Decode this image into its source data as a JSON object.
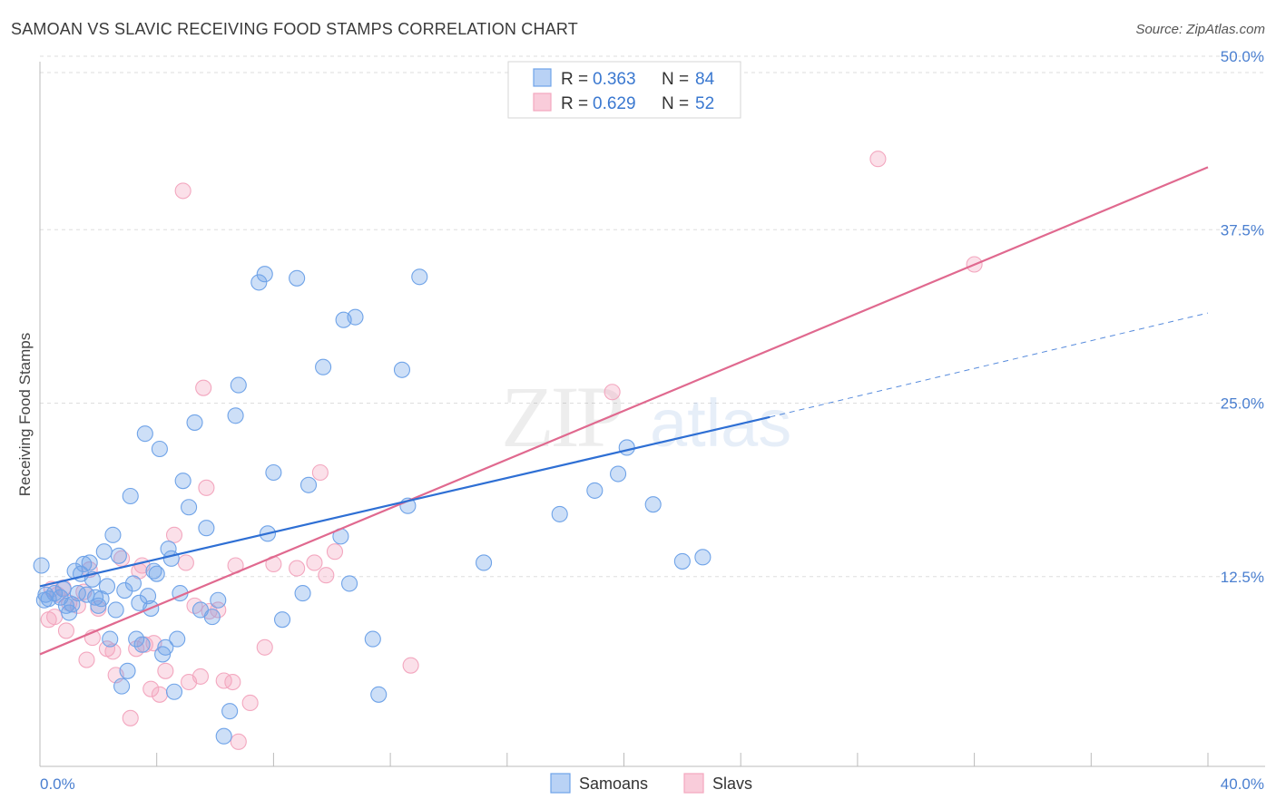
{
  "title": "SAMOAN VS SLAVIC RECEIVING FOOD STAMPS CORRELATION CHART",
  "source": "Source: ZipAtlas.com",
  "colors": {
    "blue": "#6fa3e8",
    "blue_line": "#2e6fd4",
    "pink": "#f3a7bf",
    "pink_line": "#e0698f",
    "grid": "#dddddd",
    "label": "#4a7fd0"
  },
  "chart_data": {
    "type": "scatter",
    "title": "SAMOAN VS SLAVIC RECEIVING FOOD STAMPS CORRELATION CHART",
    "xlabel": "",
    "ylabel": "Receiving Food Stamps",
    "xlim": [
      0,
      40
    ],
    "ylim": [
      0,
      50
    ],
    "x_tick_labels": [
      "0.0%",
      "40.0%"
    ],
    "y_ticks": [
      12.5,
      25.0,
      37.5,
      50.0
    ],
    "y_tick_labels": [
      "12.5%",
      "25.0%",
      "37.5%",
      "50.0%"
    ],
    "grid": true,
    "legend": [
      {
        "name": "Samoans",
        "r_label": "R =",
        "r": "0.363",
        "n_label": "N =",
        "n": "84"
      },
      {
        "name": "Slavs",
        "r_label": "R =",
        "r": "0.629",
        "n_label": "N =",
        "n": "52"
      }
    ],
    "series": [
      {
        "name": "Samoans",
        "trend": {
          "x0": 0,
          "y0": 11.8,
          "x1": 25,
          "y1": 24.0,
          "dash_x1": 40,
          "dash_y1": 31.5
        },
        "points": [
          [
            0.2,
            11.2
          ],
          [
            0.3,
            10.9
          ],
          [
            0.5,
            11.3
          ],
          [
            0.7,
            11.0
          ],
          [
            0.8,
            11.6
          ],
          [
            0.9,
            10.4
          ],
          [
            1.0,
            9.9
          ],
          [
            1.1,
            10.5
          ],
          [
            1.2,
            12.9
          ],
          [
            1.3,
            11.3
          ],
          [
            1.4,
            12.7
          ],
          [
            1.5,
            13.4
          ],
          [
            1.6,
            11.2
          ],
          [
            1.7,
            13.5
          ],
          [
            1.8,
            12.3
          ],
          [
            1.9,
            11.0
          ],
          [
            2.0,
            10.4
          ],
          [
            2.1,
            10.9
          ],
          [
            2.2,
            14.3
          ],
          [
            2.3,
            11.8
          ],
          [
            2.4,
            8.0
          ],
          [
            2.5,
            15.5
          ],
          [
            2.6,
            10.1
          ],
          [
            2.7,
            14.0
          ],
          [
            2.8,
            4.6
          ],
          [
            2.9,
            11.5
          ],
          [
            3.0,
            5.7
          ],
          [
            3.1,
            18.3
          ],
          [
            3.2,
            12.0
          ],
          [
            3.3,
            8.0
          ],
          [
            3.4,
            10.6
          ],
          [
            3.5,
            7.6
          ],
          [
            3.6,
            22.8
          ],
          [
            3.7,
            11.1
          ],
          [
            3.8,
            10.2
          ],
          [
            3.9,
            12.9
          ],
          [
            4.0,
            12.7
          ],
          [
            4.1,
            21.7
          ],
          [
            4.2,
            6.9
          ],
          [
            4.3,
            7.4
          ],
          [
            4.4,
            14.5
          ],
          [
            4.5,
            13.8
          ],
          [
            4.6,
            4.2
          ],
          [
            4.7,
            8.0
          ],
          [
            4.8,
            11.3
          ],
          [
            4.9,
            19.4
          ],
          [
            5.1,
            17.5
          ],
          [
            5.3,
            23.6
          ],
          [
            5.5,
            10.1
          ],
          [
            5.7,
            16.0
          ],
          [
            5.9,
            9.6
          ],
          [
            6.1,
            10.8
          ],
          [
            6.3,
            1.0
          ],
          [
            6.5,
            2.8
          ],
          [
            6.7,
            24.1
          ],
          [
            6.8,
            26.3
          ],
          [
            7.5,
            33.7
          ],
          [
            7.7,
            34.3
          ],
          [
            7.8,
            15.6
          ],
          [
            8.0,
            20.0
          ],
          [
            8.3,
            9.4
          ],
          [
            8.8,
            34.0
          ],
          [
            9.0,
            11.3
          ],
          [
            9.2,
            19.1
          ],
          [
            9.7,
            27.6
          ],
          [
            10.3,
            15.4
          ],
          [
            10.4,
            31.0
          ],
          [
            10.6,
            12.0
          ],
          [
            10.8,
            31.2
          ],
          [
            11.4,
            8.0
          ],
          [
            11.6,
            4.0
          ],
          [
            12.4,
            27.4
          ],
          [
            12.6,
            17.6
          ],
          [
            13.0,
            34.1
          ],
          [
            15.2,
            13.5
          ],
          [
            17.8,
            17.0
          ],
          [
            19.0,
            18.7
          ],
          [
            19.8,
            19.9
          ],
          [
            20.1,
            21.8
          ],
          [
            21.0,
            17.7
          ],
          [
            22.0,
            13.6
          ],
          [
            22.7,
            13.9
          ],
          [
            0.05,
            13.3
          ],
          [
            0.15,
            10.8
          ]
        ]
      },
      {
        "name": "Slavs",
        "trend": {
          "x0": 0,
          "y0": 6.9,
          "x1": 40,
          "y1": 42.0
        },
        "points": [
          [
            0.3,
            9.4
          ],
          [
            0.4,
            11.6
          ],
          [
            0.5,
            9.6
          ],
          [
            0.6,
            11.2
          ],
          [
            0.8,
            11.7
          ],
          [
            0.9,
            8.6
          ],
          [
            1.0,
            10.6
          ],
          [
            1.3,
            10.4
          ],
          [
            1.5,
            11.4
          ],
          [
            1.6,
            6.5
          ],
          [
            1.7,
            13.0
          ],
          [
            1.8,
            8.1
          ],
          [
            2.0,
            10.2
          ],
          [
            2.3,
            7.3
          ],
          [
            2.5,
            7.1
          ],
          [
            2.6,
            5.4
          ],
          [
            2.8,
            13.8
          ],
          [
            3.1,
            2.3
          ],
          [
            3.3,
            7.3
          ],
          [
            3.4,
            12.9
          ],
          [
            3.5,
            13.3
          ],
          [
            3.6,
            7.6
          ],
          [
            3.8,
            4.4
          ],
          [
            3.9,
            7.7
          ],
          [
            4.1,
            4.0
          ],
          [
            4.3,
            5.7
          ],
          [
            4.6,
            15.5
          ],
          [
            4.9,
            40.3
          ],
          [
            5.0,
            13.5
          ],
          [
            5.1,
            4.9
          ],
          [
            5.3,
            10.4
          ],
          [
            5.5,
            5.3
          ],
          [
            5.6,
            26.1
          ],
          [
            5.7,
            18.9
          ],
          [
            5.8,
            10.0
          ],
          [
            6.1,
            10.1
          ],
          [
            6.3,
            5.0
          ],
          [
            6.6,
            4.9
          ],
          [
            6.7,
            13.3
          ],
          [
            6.8,
            0.6
          ],
          [
            7.2,
            3.4
          ],
          [
            7.7,
            7.4
          ],
          [
            8.0,
            13.4
          ],
          [
            8.8,
            13.1
          ],
          [
            9.4,
            13.5
          ],
          [
            9.6,
            20.0
          ],
          [
            9.8,
            12.6
          ],
          [
            10.1,
            14.3
          ],
          [
            12.7,
            6.1
          ],
          [
            19.6,
            25.8
          ],
          [
            28.7,
            42.6
          ],
          [
            32.0,
            35.0
          ]
        ]
      }
    ]
  }
}
